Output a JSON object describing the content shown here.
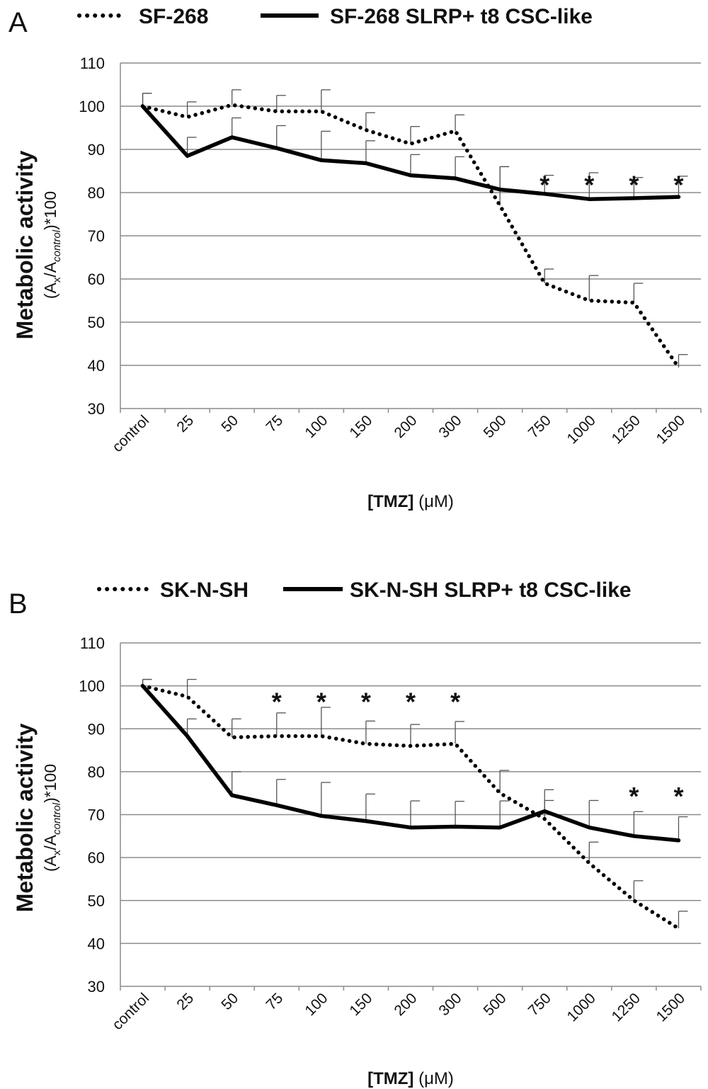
{
  "chart_data": [
    {
      "type": "line",
      "panel_label": "A",
      "categories": [
        "control",
        "25",
        "50",
        "75",
        "100",
        "150",
        "200",
        "300",
        "500",
        "750",
        "1000",
        "1250",
        "1500"
      ],
      "series": [
        {
          "name": "SF-268",
          "style": "dotted",
          "values": [
            100,
            97.5,
            100.3,
            98.8,
            98.8,
            94.5,
            91.3,
            94.3,
            77,
            59,
            55,
            54.5,
            39.5
          ],
          "error_upper": [
            103,
            101,
            103.8,
            102.5,
            103.8,
            98.5,
            95.3,
            98,
            86,
            62.3,
            60.8,
            59,
            42.5
          ]
        },
        {
          "name": "SF-268 SLRP+ t8 CSC-like",
          "style": "solid",
          "values": [
            100,
            88.5,
            92.8,
            90.3,
            87.5,
            86.8,
            84,
            83.3,
            80.7,
            79.7,
            78.5,
            78.7,
            79
          ],
          "error_upper": [
            103,
            92.8,
            97.3,
            95.5,
            94.2,
            92,
            88.8,
            88.3,
            86,
            84,
            84.6,
            83.5,
            83.8
          ]
        }
      ],
      "significance_marks": {
        "symbol": "*",
        "categories": [
          "750",
          "1000",
          "1250",
          "1500"
        ]
      },
      "ylim": [
        30,
        110
      ],
      "yticks": [
        30,
        40,
        50,
        60,
        70,
        80,
        90,
        100,
        110
      ],
      "grid": true,
      "legend_position": "top",
      "ylabel": {
        "main": "Metabolic activity",
        "sub_open": "(A",
        "sub_x": "x",
        "sub_slash": "/A",
        "sub_control": "control",
        "sub_close": ")*100"
      },
      "xlabel": {
        "bold": "[TMZ]",
        "unit": " (μM)"
      }
    },
    {
      "type": "line",
      "panel_label": "B",
      "categories": [
        "control",
        "25",
        "50",
        "75",
        "100",
        "150",
        "200",
        "300",
        "500",
        "750",
        "1000",
        "1250",
        "1500"
      ],
      "series": [
        {
          "name": "SK-N-SH",
          "style": "dotted",
          "values": [
            100,
            97.5,
            88,
            88.3,
            88.3,
            86.5,
            86,
            86.5,
            75,
            69,
            58.7,
            50,
            43.5
          ],
          "error_upper": [
            101.5,
            101.5,
            92.3,
            93.7,
            95,
            91.8,
            91,
            91.7,
            80.3,
            75.8,
            63.6,
            54.6,
            47.5
          ]
        },
        {
          "name": "SK-N-SH SLRP+ t8 CSC-like",
          "style": "solid",
          "values": [
            100,
            88.3,
            74.5,
            72.2,
            69.7,
            68.5,
            67,
            67.2,
            67,
            70.8,
            67,
            65,
            64
          ],
          "error_upper": [
            101.5,
            92.3,
            80,
            78.2,
            77.5,
            74.8,
            73.2,
            73.1,
            73.2,
            73.3,
            73.3,
            70.7,
            69.5
          ]
        }
      ],
      "significance_marks": {
        "symbol": "*",
        "categories": [
          "75",
          "100",
          "150",
          "200",
          "300",
          "1250",
          "1500"
        ]
      },
      "ylim": [
        30,
        110
      ],
      "yticks": [
        30,
        40,
        50,
        60,
        70,
        80,
        90,
        100,
        110
      ],
      "grid": true,
      "legend_position": "top",
      "ylabel": {
        "main": "Metabolic activity",
        "sub_open": "(A",
        "sub_x": "x",
        "sub_slash": "/A",
        "sub_control": "control",
        "sub_close": ")*100"
      },
      "xlabel": {
        "bold": "[TMZ]",
        "unit": " (μM)"
      }
    }
  ]
}
